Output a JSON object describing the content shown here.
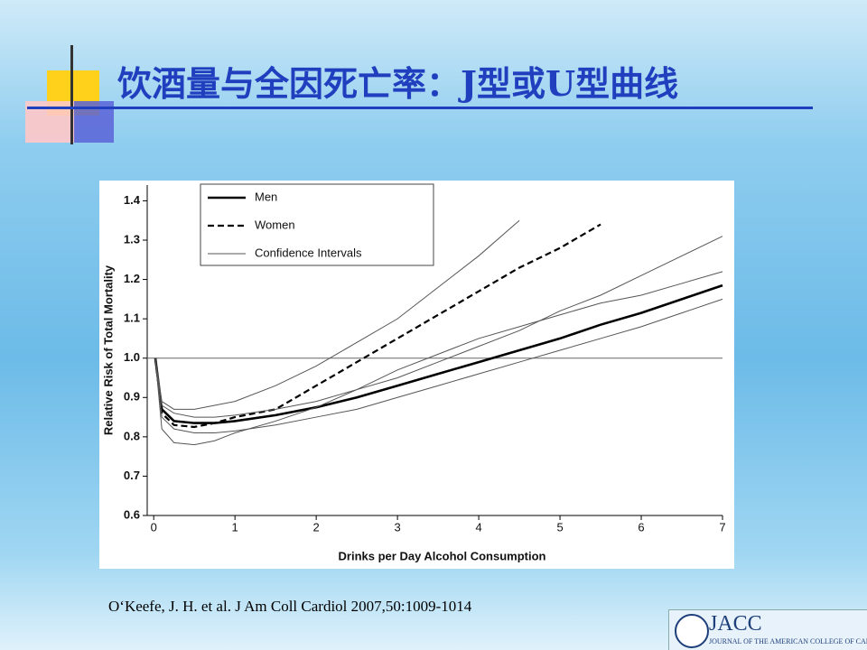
{
  "slide": {
    "title": "饮酒量与全因死亡率：J型或U型曲线",
    "citation": "O‘Keefe, J. H. et al. J Am Coll Cardiol 2007,50:1009-1014",
    "logo_text": "JACC",
    "logo_subtext": "JOURNAL OF THE AMERICAN COLLEGE OF CARDIOLOGY"
  },
  "chart_data": {
    "type": "line",
    "x_label": "Drinks per Day Alcohol Consumption",
    "y_label": "Relative Risk of Total Mortality",
    "x": [
      0.02,
      0.1,
      0.25,
      0.5,
      0.75,
      1,
      1.5,
      2,
      2.5,
      3,
      3.5,
      4,
      4.5,
      5,
      5.5,
      6,
      6.5,
      7
    ],
    "series": [
      {
        "name": "Men",
        "color": "#000000",
        "style": "solid",
        "width": 2.6,
        "values": [
          1.0,
          0.87,
          0.84,
          0.835,
          0.835,
          0.84,
          0.855,
          0.875,
          0.9,
          0.93,
          0.96,
          0.99,
          1.02,
          1.05,
          1.085,
          1.115,
          1.15,
          1.185
        ]
      },
      {
        "name": "Women",
        "color": "#000000",
        "style": "dashed",
        "width": 2.2,
        "values": [
          1.0,
          0.86,
          0.83,
          0.825,
          0.835,
          0.85,
          0.87,
          0.93,
          0.99,
          1.05,
          1.11,
          1.17,
          1.23,
          1.28,
          1.34,
          null,
          null,
          null
        ]
      },
      {
        "name": "Confidence Intervals",
        "color": "#555555",
        "style": "solid",
        "width": 1,
        "values": [
          1.0,
          0.88,
          0.86,
          0.85,
          0.85,
          0.855,
          0.87,
          0.89,
          0.92,
          0.95,
          0.99,
          1.03,
          1.07,
          1.12,
          1.16,
          1.21,
          1.26,
          1.31
        ]
      },
      {
        "name": "Confidence Intervals",
        "color": "#555555",
        "style": "solid",
        "width": 1,
        "values": [
          1.0,
          0.85,
          0.82,
          0.81,
          0.81,
          0.815,
          0.83,
          0.85,
          0.87,
          0.9,
          0.93,
          0.96,
          0.99,
          1.02,
          1.05,
          1.08,
          1.115,
          1.15
        ]
      },
      {
        "name": "Confidence Intervals",
        "color": "#555555",
        "style": "solid",
        "width": 1,
        "values": [
          1.0,
          0.89,
          0.87,
          0.87,
          0.88,
          0.89,
          0.93,
          0.98,
          1.04,
          1.1,
          1.18,
          1.26,
          1.35,
          null,
          null,
          null,
          null,
          null
        ]
      },
      {
        "name": "Confidence Intervals",
        "color": "#555555",
        "style": "solid",
        "width": 1,
        "values": [
          1.0,
          0.82,
          0.785,
          0.78,
          0.79,
          0.81,
          0.84,
          0.875,
          0.92,
          0.97,
          1.01,
          1.05,
          1.08,
          1.11,
          1.14,
          1.16,
          1.19,
          1.22
        ]
      }
    ],
    "reference_line": 1.0,
    "xlim": [
      -0.08,
      7
    ],
    "ylim": [
      0.6,
      1.44
    ],
    "xticks": [
      0,
      1,
      2,
      3,
      4,
      5,
      6,
      7
    ],
    "yticks": [
      0.6,
      0.7,
      0.8,
      0.9,
      {
        "value": 1.0,
        "label": "1.0"
      },
      1.1,
      1.2,
      1.3,
      1.4
    ],
    "legend": "top-left"
  }
}
